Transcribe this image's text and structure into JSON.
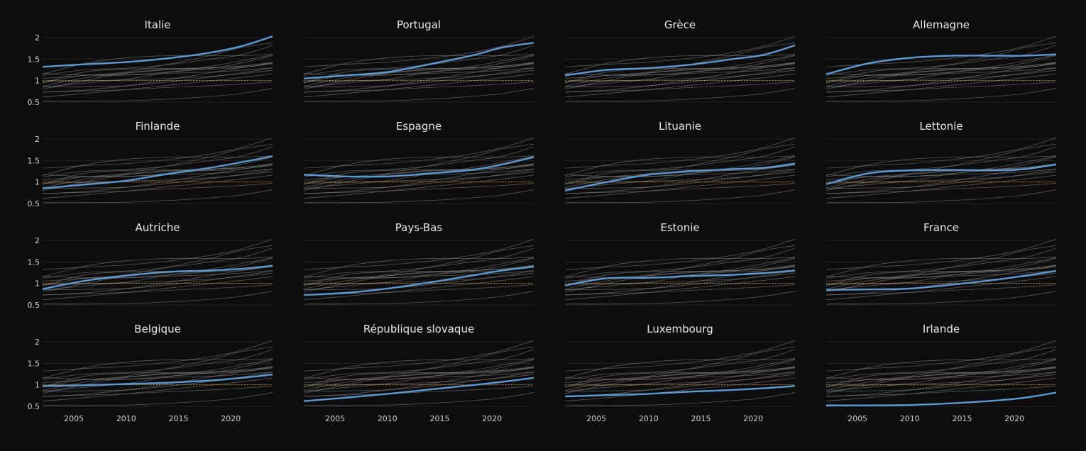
{
  "colors": {
    "background": "#0d0d0d",
    "highlight": "#5b9bd5",
    "context": "#8a8a8a",
    "reference": "#f0a030",
    "grid": "#242424",
    "text": "#e8e8e8",
    "tick": "#d0d0d0"
  },
  "chart_data": {
    "type": "line",
    "layout": "small-multiples 4x4",
    "xlim": [
      2002,
      2024
    ],
    "ylim": [
      0.45,
      2.1
    ],
    "x_ticks": [
      2005,
      2010,
      2015,
      2020
    ],
    "x_tick_labels": [
      "2005",
      "2010",
      "2015",
      "2020"
    ],
    "y_ticks": [
      0.5,
      1,
      1.5,
      2
    ],
    "y_tick_labels": [
      "0.5",
      "1",
      "1.5",
      "2"
    ],
    "reference_line": {
      "y": 1,
      "style": "dotted"
    },
    "grid": true,
    "legend": "none",
    "x_anchor_years": [
      2002,
      2006,
      2010,
      2014,
      2018,
      2021,
      2024
    ],
    "countries": [
      {
        "name": "Italie",
        "values": [
          1.32,
          1.38,
          1.43,
          1.52,
          1.65,
          1.8,
          2.03
        ]
      },
      {
        "name": "Portugal",
        "values": [
          1.05,
          1.12,
          1.2,
          1.38,
          1.58,
          1.77,
          1.88
        ]
      },
      {
        "name": "Grèce",
        "values": [
          1.12,
          1.25,
          1.29,
          1.37,
          1.5,
          1.6,
          1.82
        ]
      },
      {
        "name": "Allemagne",
        "values": [
          1.15,
          1.4,
          1.53,
          1.58,
          1.58,
          1.58,
          1.61
        ]
      },
      {
        "name": "Finlande",
        "values": [
          0.85,
          0.94,
          1.03,
          1.19,
          1.33,
          1.46,
          1.6
        ]
      },
      {
        "name": "Espagne",
        "values": [
          1.17,
          1.13,
          1.13,
          1.2,
          1.28,
          1.41,
          1.58
        ]
      },
      {
        "name": "Lituanie",
        "values": [
          0.8,
          1.0,
          1.17,
          1.25,
          1.3,
          1.33,
          1.43
        ]
      },
      {
        "name": "Lettonie",
        "values": [
          0.95,
          1.2,
          1.27,
          1.28,
          1.27,
          1.3,
          1.41
        ]
      },
      {
        "name": "Autriche",
        "values": [
          0.87,
          1.06,
          1.18,
          1.27,
          1.3,
          1.34,
          1.41
        ]
      },
      {
        "name": "Pays-Bas",
        "values": [
          0.73,
          0.78,
          0.88,
          1.02,
          1.18,
          1.3,
          1.39
        ]
      },
      {
        "name": "Estonie",
        "values": [
          0.95,
          1.12,
          1.13,
          1.17,
          1.2,
          1.24,
          1.3
        ]
      },
      {
        "name": "France",
        "values": [
          0.85,
          0.86,
          0.88,
          0.97,
          1.08,
          1.18,
          1.29
        ]
      },
      {
        "name": "Belgique",
        "values": [
          0.97,
          0.99,
          1.02,
          1.05,
          1.1,
          1.16,
          1.24
        ]
      },
      {
        "name": "République slovaque",
        "values": [
          0.62,
          0.7,
          0.79,
          0.89,
          0.99,
          1.07,
          1.16
        ]
      },
      {
        "name": "Luxembourg",
        "values": [
          0.73,
          0.76,
          0.79,
          0.84,
          0.88,
          0.92,
          0.97
        ]
      },
      {
        "name": "Irlande",
        "values": [
          0.52,
          0.52,
          0.53,
          0.57,
          0.63,
          0.7,
          0.82
        ]
      }
    ]
  }
}
